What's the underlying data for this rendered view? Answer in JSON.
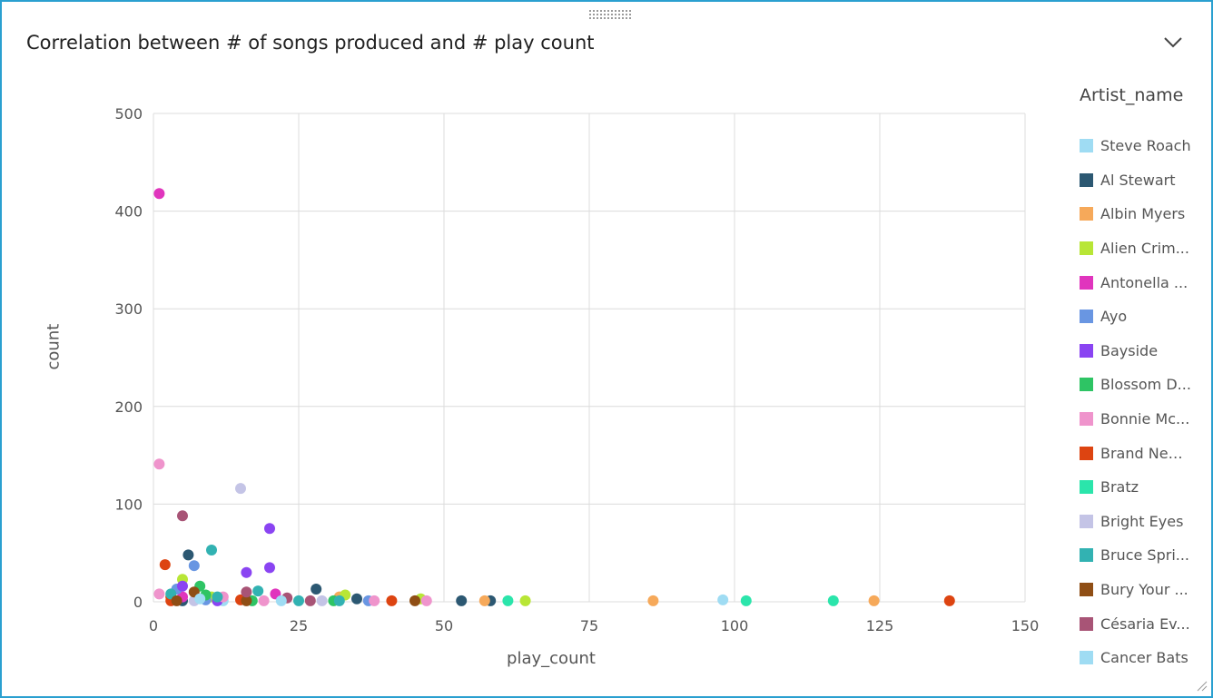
{
  "window": {
    "title": "Correlation between # of songs produced and # play count"
  },
  "chart_data": {
    "type": "scatter",
    "title": "Correlation between # of songs produced and # play count",
    "xlabel": "play_count",
    "ylabel": "count",
    "xlim": [
      0,
      150
    ],
    "ylim": [
      0,
      500
    ],
    "xticks": [
      0,
      25,
      50,
      75,
      100,
      125,
      150
    ],
    "yticks": [
      0,
      100,
      200,
      300,
      400,
      500
    ],
    "xtick_labels": [
      "0",
      "25",
      "50",
      "75",
      "100",
      "125",
      "150"
    ],
    "ytick_labels": [
      "0",
      "100",
      "200",
      "300",
      "400",
      "500"
    ],
    "grid": true,
    "legend_title": "Artist_name",
    "legend_position": "right",
    "series": [
      {
        "name": "Steve Roach",
        "color": "#9fdcf3",
        "points": [
          [
            98,
            2
          ],
          [
            12,
            1
          ]
        ]
      },
      {
        "name": "Al Stewart",
        "color": "#2c5872",
        "points": [
          [
            6,
            48
          ],
          [
            28,
            13
          ],
          [
            35,
            3
          ],
          [
            53,
            1
          ],
          [
            58,
            1
          ],
          [
            5,
            1
          ]
        ]
      },
      {
        "name": "Albin Myers",
        "color": "#f6a95a",
        "points": [
          [
            57,
            1
          ],
          [
            86,
            1
          ],
          [
            124,
            1
          ],
          [
            32,
            5
          ]
        ]
      },
      {
        "name": "Alien Crim...",
        "color": "#b8e636",
        "points": [
          [
            5,
            23
          ],
          [
            33,
            7
          ],
          [
            46,
            3
          ],
          [
            64,
            1
          ],
          [
            10,
            5
          ]
        ]
      },
      {
        "name": "Antonella ...",
        "color": "#e035bd",
        "points": [
          [
            1,
            418
          ],
          [
            21,
            8
          ],
          [
            5,
            5
          ]
        ]
      },
      {
        "name": "Ayo",
        "color": "#6996e2",
        "points": [
          [
            7,
            37
          ],
          [
            4,
            13
          ],
          [
            37,
            1
          ],
          [
            9,
            2
          ]
        ]
      },
      {
        "name": "Bayside",
        "color": "#8a44f2",
        "points": [
          [
            20,
            75
          ],
          [
            20,
            35
          ],
          [
            16,
            30
          ],
          [
            5,
            16
          ],
          [
            11,
            1
          ]
        ]
      },
      {
        "name": "Blossom D...",
        "color": "#2ec464",
        "points": [
          [
            8,
            16
          ],
          [
            17,
            1
          ],
          [
            31,
            1
          ],
          [
            9,
            7
          ]
        ]
      },
      {
        "name": "Bonnie Mc...",
        "color": "#ef94cc",
        "points": [
          [
            1,
            141
          ],
          [
            1,
            8
          ],
          [
            12,
            5
          ],
          [
            19,
            1
          ],
          [
            38,
            1
          ],
          [
            47,
            1
          ]
        ]
      },
      {
        "name": "Brand New...",
        "color": "#dd4411",
        "points": [
          [
            2,
            38
          ],
          [
            3,
            5
          ],
          [
            3,
            1
          ],
          [
            41,
            1
          ],
          [
            137,
            1
          ],
          [
            15,
            2
          ]
        ]
      },
      {
        "name": "Bratz",
        "color": "#2be5ab",
        "points": [
          [
            61,
            1
          ],
          [
            102,
            1
          ],
          [
            117,
            1
          ]
        ]
      },
      {
        "name": "Bright Eyes",
        "color": "#c4c4e6",
        "points": [
          [
            15,
            116
          ],
          [
            29,
            1
          ],
          [
            7,
            1
          ]
        ]
      },
      {
        "name": "Bruce Spri...",
        "color": "#32b2b2",
        "points": [
          [
            10,
            53
          ],
          [
            18,
            11
          ],
          [
            11,
            5
          ],
          [
            25,
            1
          ],
          [
            32,
            1
          ],
          [
            3,
            8
          ]
        ]
      },
      {
        "name": "Bury Your ...",
        "color": "#8f4e15",
        "points": [
          [
            7,
            10
          ],
          [
            16,
            1
          ],
          [
            45,
            1
          ],
          [
            4,
            1
          ]
        ]
      },
      {
        "name": "Césaria Ev...",
        "color": "#a85476",
        "points": [
          [
            5,
            88
          ],
          [
            16,
            10
          ],
          [
            23,
            4
          ],
          [
            27,
            1
          ]
        ]
      },
      {
        "name": "Cancer Bats",
        "color": "#9fdcf3",
        "points": [
          [
            22,
            1
          ],
          [
            8,
            3
          ]
        ]
      }
    ]
  }
}
